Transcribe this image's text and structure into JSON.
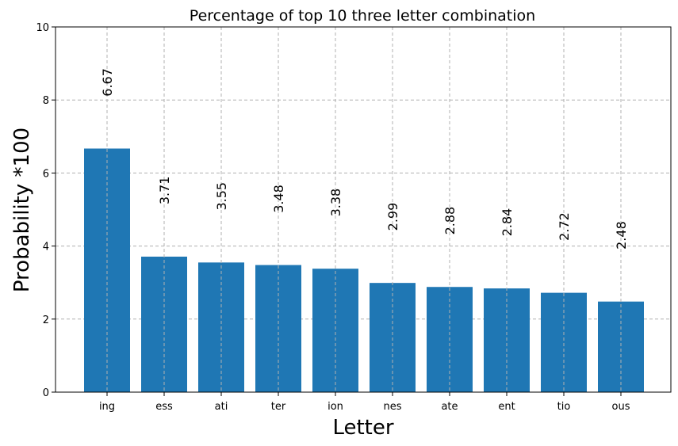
{
  "chart_data": {
    "type": "bar",
    "title": "Percentage of top 10 three letter combination",
    "xlabel": "Letter",
    "ylabel": "Probability *100",
    "categories": [
      "ing",
      "ess",
      "ati",
      "ter",
      "ion",
      "nes",
      "ate",
      "ent",
      "tio",
      "ous"
    ],
    "values": [
      6.67,
      3.71,
      3.55,
      3.48,
      3.38,
      2.99,
      2.88,
      2.84,
      2.72,
      2.48
    ],
    "data_labels": [
      "6.67",
      "3.71",
      "3.55",
      "3.48",
      "3.38",
      "2.99",
      "2.88",
      "2.84",
      "2.72",
      "2.48"
    ],
    "ylim": [
      0,
      10
    ],
    "yticks": [
      0,
      2,
      4,
      6,
      8,
      10
    ],
    "grid": true,
    "bar_color": "#1f77b4",
    "grid_color": "#b0b0b0"
  }
}
